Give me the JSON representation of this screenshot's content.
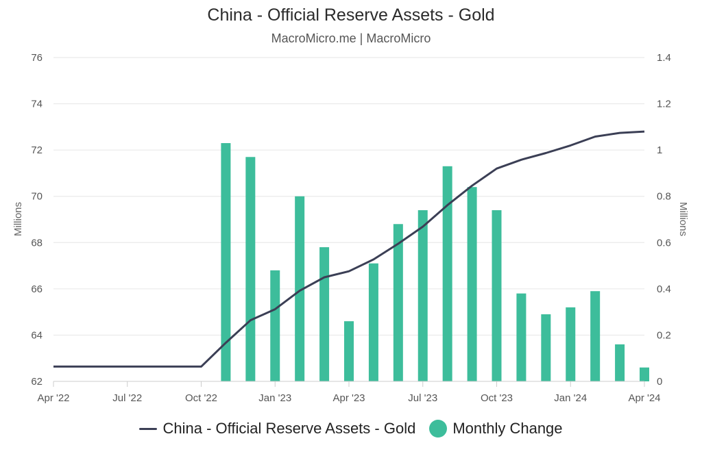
{
  "chart_data": {
    "type": "bar+line",
    "title": "China - Official Reserve Assets - Gold",
    "subtitle": "MacroMicro.me | MacroMicro",
    "left_axis": {
      "label": "Millions",
      "range": [
        62,
        76
      ],
      "ticks": [
        "62",
        "64",
        "66",
        "68",
        "70",
        "72",
        "74",
        "76"
      ]
    },
    "right_axis": {
      "label": "Millions",
      "range": [
        0,
        1.4
      ],
      "ticks": [
        "0",
        "0.2",
        "0.4",
        "0.6",
        "0.8",
        "1",
        "1.2",
        "1.4"
      ]
    },
    "x_ticks": [
      "Apr '22",
      "Jul '22",
      "Oct '22",
      "Jan '23",
      "Apr '23",
      "Jul '23",
      "Oct '23",
      "Jan '24",
      "Apr '24"
    ],
    "line_series": {
      "name": "China - Official Reserve Assets - Gold",
      "axis": "left",
      "color": "#3b3f55",
      "points": [
        [
          "2022-04",
          62.64
        ],
        [
          "2022-05",
          62.64
        ],
        [
          "2022-06",
          62.64
        ],
        [
          "2022-07",
          62.64
        ],
        [
          "2022-08",
          62.64
        ],
        [
          "2022-09",
          62.64
        ],
        [
          "2022-10",
          62.64
        ],
        [
          "2022-11",
          63.67
        ],
        [
          "2022-12",
          64.64
        ],
        [
          "2023-01",
          65.12
        ],
        [
          "2023-02",
          65.92
        ],
        [
          "2023-03",
          66.5
        ],
        [
          "2023-04",
          66.76
        ],
        [
          "2023-05",
          67.27
        ],
        [
          "2023-06",
          67.95
        ],
        [
          "2023-07",
          68.69
        ],
        [
          "2023-08",
          69.62
        ],
        [
          "2023-09",
          70.46
        ],
        [
          "2023-10",
          71.2
        ],
        [
          "2023-11",
          71.58
        ],
        [
          "2023-12",
          71.87
        ],
        [
          "2024-01",
          72.2
        ],
        [
          "2024-02",
          72.58
        ],
        [
          "2024-03",
          72.74
        ],
        [
          "2024-04",
          72.8
        ]
      ]
    },
    "bar_series": {
      "name": "Monthly Change",
      "axis": "right",
      "color": "#3dbd9b",
      "points": [
        [
          "2022-11",
          1.03
        ],
        [
          "2022-12",
          0.97
        ],
        [
          "2023-01",
          0.48
        ],
        [
          "2023-02",
          0.8
        ],
        [
          "2023-03",
          0.58
        ],
        [
          "2023-04",
          0.26
        ],
        [
          "2023-05",
          0.51
        ],
        [
          "2023-06",
          0.68
        ],
        [
          "2023-07",
          0.74
        ],
        [
          "2023-08",
          0.93
        ],
        [
          "2023-09",
          0.84
        ],
        [
          "2023-10",
          0.74
        ],
        [
          "2023-11",
          0.38
        ],
        [
          "2023-12",
          0.29
        ],
        [
          "2024-01",
          0.32
        ],
        [
          "2024-02",
          0.39
        ],
        [
          "2024-03",
          0.16
        ],
        [
          "2024-04",
          0.06
        ]
      ]
    },
    "legend": [
      "China - Official Reserve Assets - Gold",
      "Monthly Change"
    ],
    "grid": true
  }
}
